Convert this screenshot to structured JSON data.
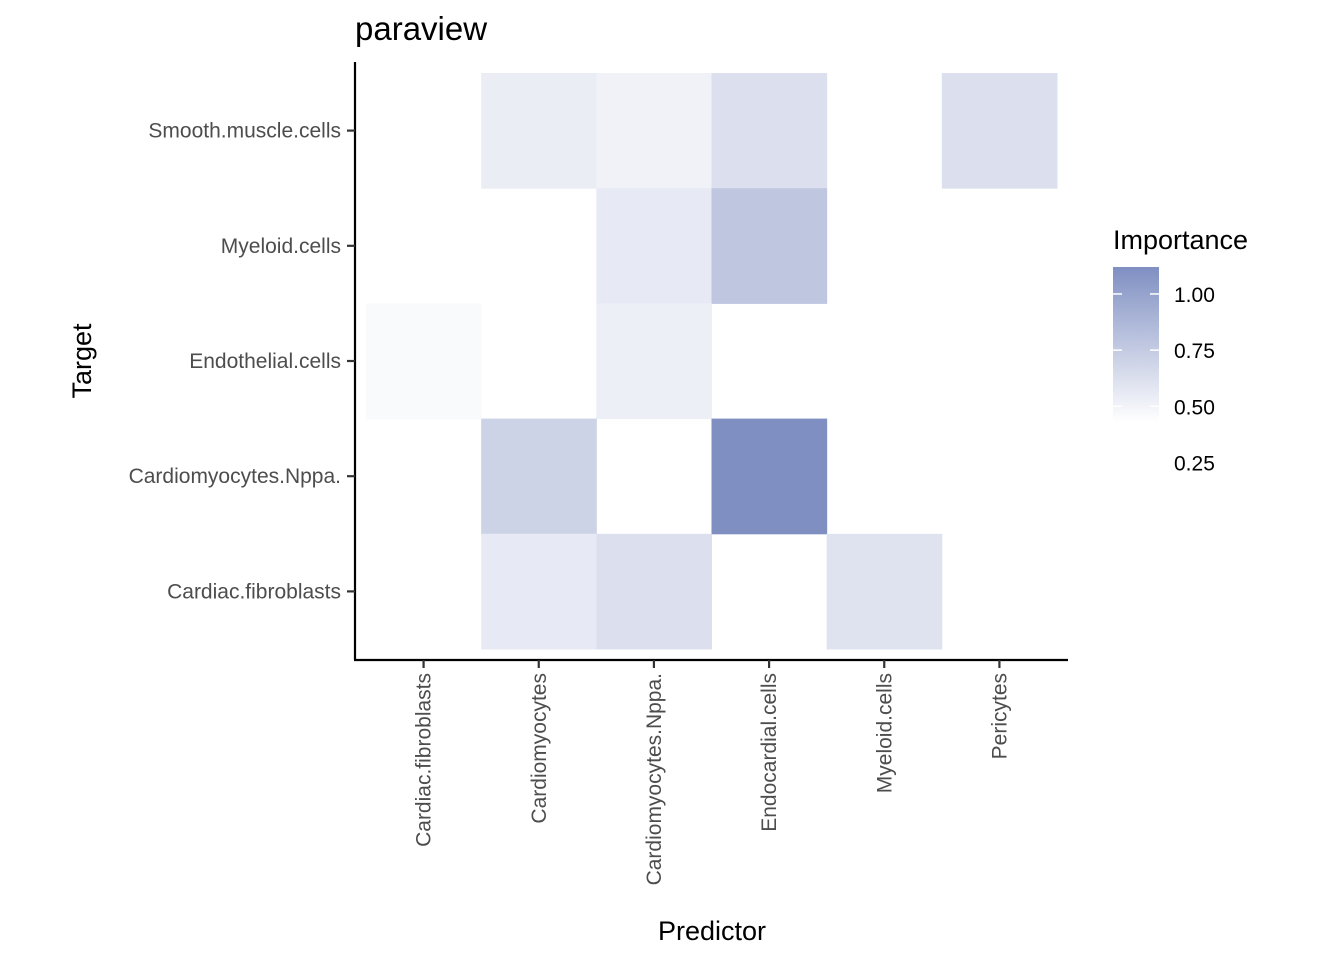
{
  "chart_data": {
    "type": "heatmap",
    "title": "paraview",
    "xlabel": "Predictor",
    "ylabel": "Target",
    "x_categories": [
      "Cardiac.fibroblasts",
      "Cardiomyocytes",
      "Cardiomyocytes.Nppa.",
      "Endocardial.cells",
      "Myeloid.cells",
      "Pericytes"
    ],
    "y_categories": [
      "Cardiac.fibroblasts",
      "Cardiomyocytes.Nppa.",
      "Endothelial.cells",
      "Myeloid.cells",
      "Smooth.muscle.cells"
    ],
    "cells": [
      {
        "x": "Cardiomyocytes",
        "y": "Smooth.muscle.cells",
        "value": 0.54
      },
      {
        "x": "Cardiomyocytes.Nppa.",
        "y": "Smooth.muscle.cells",
        "value": 0.51
      },
      {
        "x": "Endocardial.cells",
        "y": "Smooth.muscle.cells",
        "value": 0.62
      },
      {
        "x": "Pericytes",
        "y": "Smooth.muscle.cells",
        "value": 0.62
      },
      {
        "x": "Cardiomyocytes.Nppa.",
        "y": "Myeloid.cells",
        "value": 0.56
      },
      {
        "x": "Endocardial.cells",
        "y": "Myeloid.cells",
        "value": 0.78
      },
      {
        "x": "Cardiac.fibroblasts",
        "y": "Endothelial.cells",
        "value": 0.46
      },
      {
        "x": "Cardiomyocytes.Nppa.",
        "y": "Endothelial.cells",
        "value": 0.53
      },
      {
        "x": "Cardiomyocytes",
        "y": "Cardiomyocytes.Nppa.",
        "value": 0.7
      },
      {
        "x": "Endocardial.cells",
        "y": "Cardiomyocytes.Nppa.",
        "value": 1.12
      },
      {
        "x": "Cardiomyocytes",
        "y": "Cardiac.fibroblasts",
        "value": 0.56
      },
      {
        "x": "Cardiomyocytes.Nppa.",
        "y": "Cardiac.fibroblasts",
        "value": 0.62
      },
      {
        "x": "Myeloid.cells",
        "y": "Cardiac.fibroblasts",
        "value": 0.6
      }
    ],
    "legend": {
      "title": "Importance",
      "breaks": [
        1.0,
        0.75,
        0.5,
        0.25
      ],
      "break_labels": [
        "1.00",
        "0.75",
        "0.50",
        "0.25"
      ],
      "range": [
        0.43,
        1.12
      ],
      "low_color": "#ffffff",
      "high_color": "#7f8fc2",
      "placement": "right"
    },
    "grid": false
  }
}
